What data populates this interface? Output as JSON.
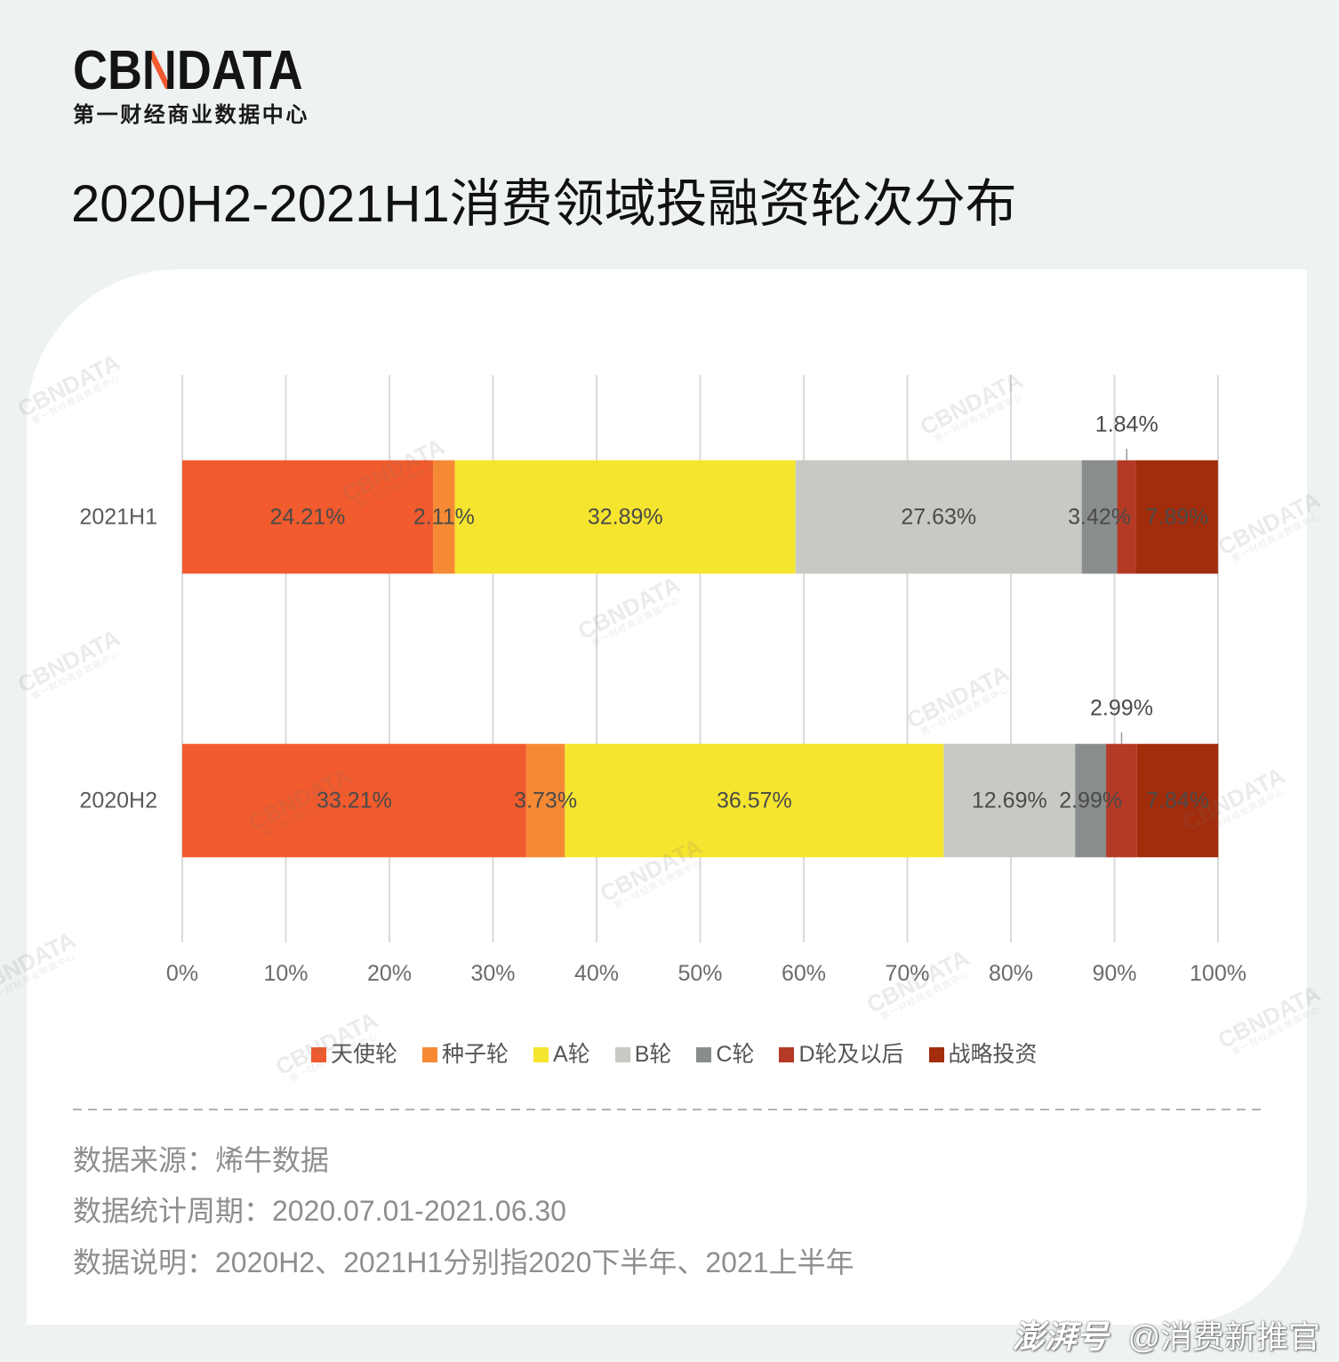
{
  "brand": {
    "logo": "CBNDATA",
    "tagline": "第一财经商业数据中心",
    "accent_color": "#f15a2e"
  },
  "chart_data": {
    "type": "bar",
    "orientation": "horizontal",
    "stacked": true,
    "title": "2020H2-2021H1消费领域投融资轮次分布",
    "xlabel": "",
    "ylabel": "",
    "unit": "%",
    "categories": [
      "2021H1",
      "2020H2"
    ],
    "series": [
      {
        "name": "天使轮",
        "color": "#f15b2d",
        "values": [
          24.21,
          33.21
        ]
      },
      {
        "name": "种子轮",
        "color": "#f68a34",
        "values": [
          2.11,
          3.73
        ]
      },
      {
        "name": "A轮",
        "color": "#f6e52f",
        "values": [
          32.89,
          36.57
        ]
      },
      {
        "name": "B轮",
        "color": "#c8c9c4",
        "values": [
          27.63,
          12.69
        ]
      },
      {
        "name": "C轮",
        "color": "#8a8d8e",
        "values": [
          3.42,
          2.99
        ]
      },
      {
        "name": "D轮及以后",
        "color": "#b43a25",
        "values": [
          1.84,
          2.99
        ]
      },
      {
        "name": "战略投资",
        "color": "#a22d0c",
        "values": [
          7.89,
          7.84
        ]
      }
    ],
    "xlim": [
      0,
      100
    ],
    "xticks": [
      0,
      10,
      20,
      30,
      40,
      50,
      60,
      70,
      80,
      90,
      100
    ],
    "grid": "vertical",
    "legend": "bottom"
  },
  "footer": {
    "source": "数据来源：烯牛数据",
    "period": "数据统计周期：2020.07.01-2021.06.30",
    "note": "数据说明：2020H2、2021H1分别指2020下半年、2021上半年"
  },
  "chart_watermark": {
    "brand": "CBNDATA",
    "sub": "第一财经商业数据中心"
  },
  "source_watermark": {
    "logo": "澎湃号",
    "handle": "@消费新推官"
  },
  "colors": {
    "page_background": "#eef2f3",
    "card": "#ffffff",
    "title_text": "#111111",
    "footer_text": "#8e8e8e"
  }
}
